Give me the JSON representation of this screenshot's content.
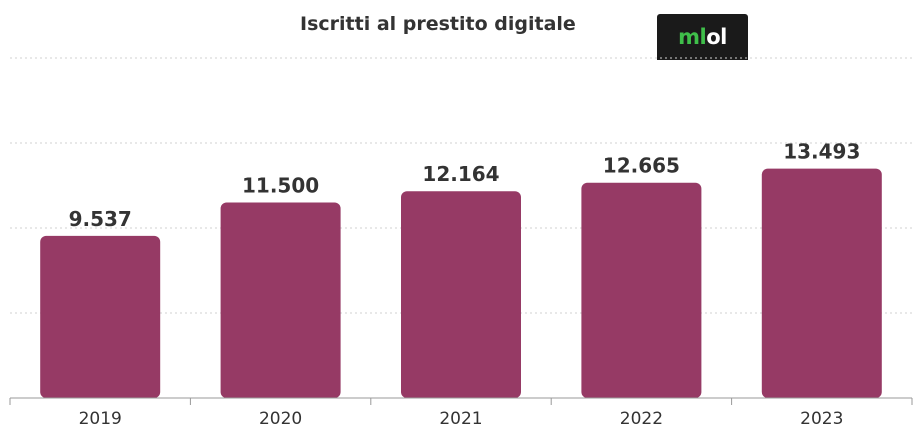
{
  "title": "Iscritti al prestito digitale",
  "logo": {
    "text_green": "ml",
    "text_white": "ol",
    "green": "#3fbf4a",
    "background": "#1a1a1a"
  },
  "colors": {
    "bar": "#963a65",
    "label": "#333333",
    "grid": "#d0d0d0"
  },
  "chart_data": {
    "type": "bar",
    "categories": [
      "2019",
      "2020",
      "2021",
      "2022",
      "2023"
    ],
    "values": [
      9537,
      11500,
      12164,
      12665,
      13493
    ],
    "value_labels": [
      "9.537",
      "11.500",
      "12.164",
      "12.665",
      "13.493"
    ],
    "title": "Iscritti al prestito digitale",
    "xlabel": "",
    "ylabel": "",
    "ylim": [
      0,
      20000
    ],
    "grid": true,
    "legend": "none"
  }
}
